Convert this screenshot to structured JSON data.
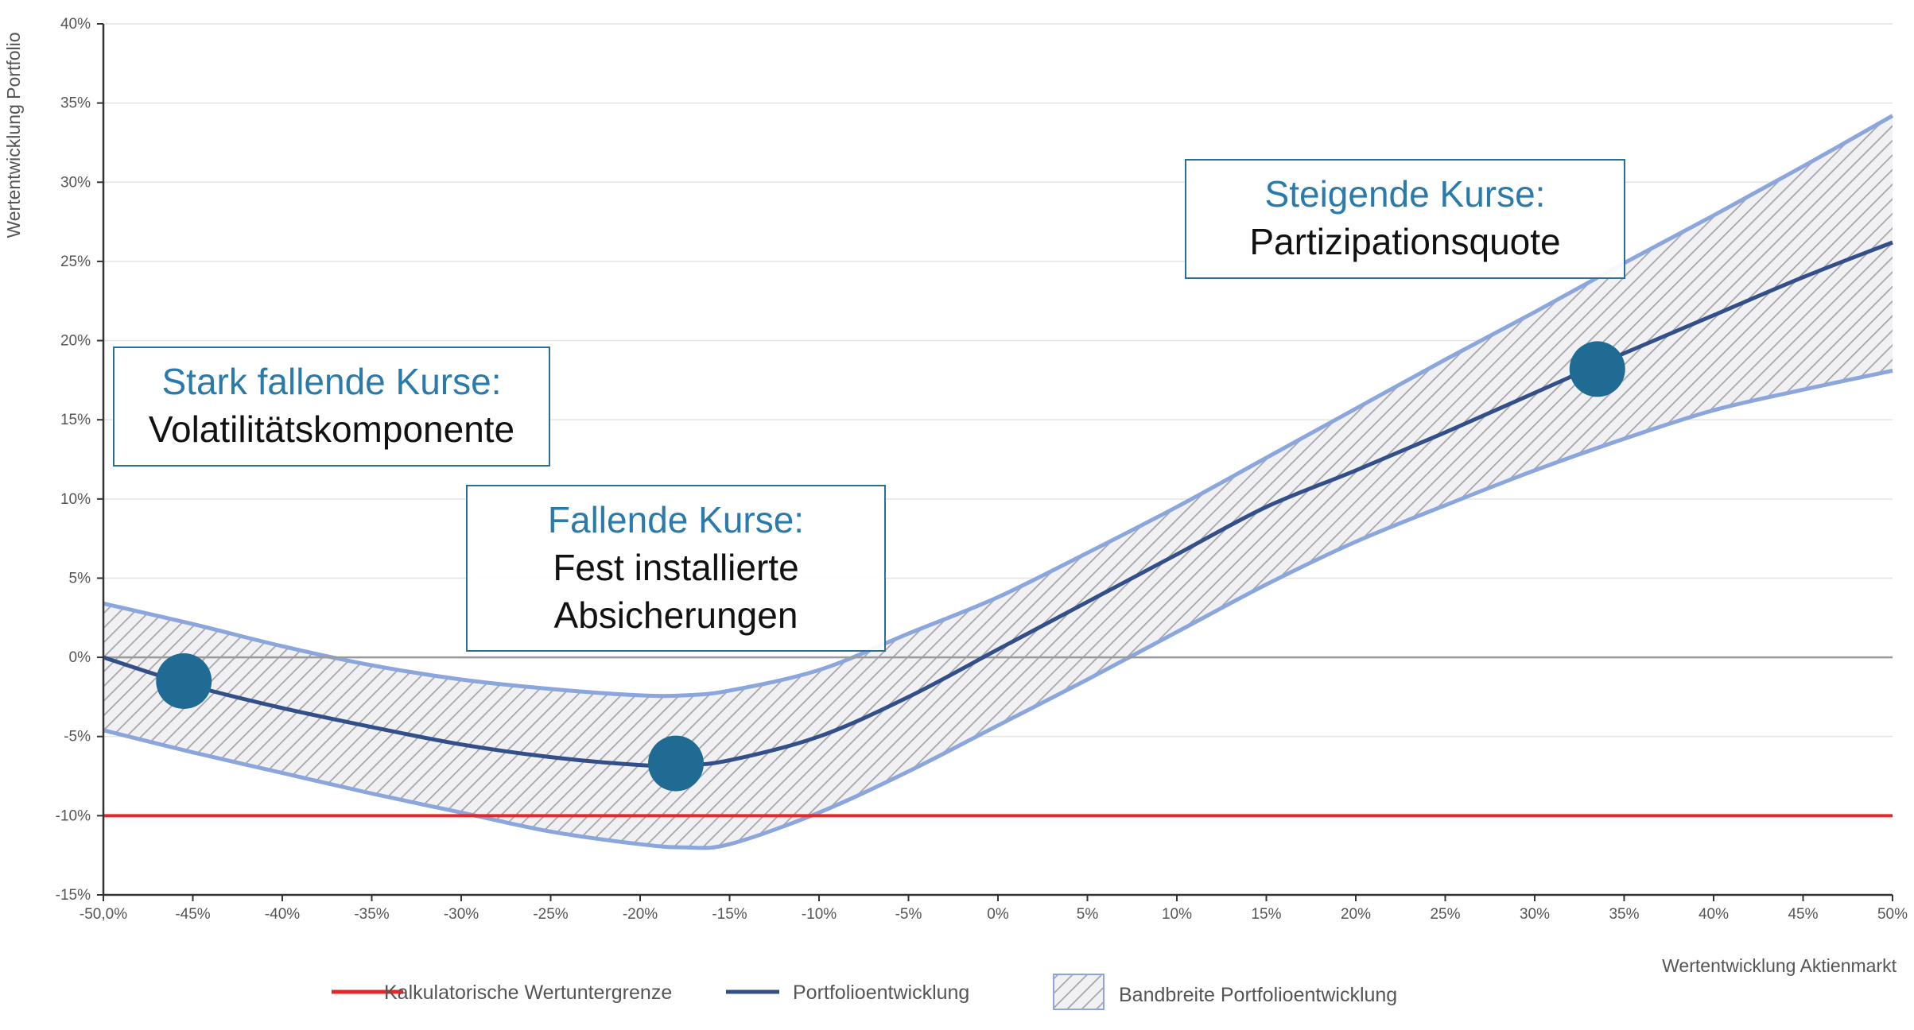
{
  "chart_data": {
    "type": "line",
    "xlabel": "Wertentwicklung Aktienmarkt",
    "ylabel": "Wertentwicklung Portfolio",
    "xlim": [
      -50,
      50
    ],
    "ylim": [
      -15,
      40
    ],
    "x_ticks": [
      -50,
      -45,
      -40,
      -35,
      -30,
      -25,
      -20,
      -15,
      -10,
      -5,
      0,
      5,
      10,
      15,
      20,
      25,
      30,
      35,
      40,
      45,
      50
    ],
    "x_tick_labels": [
      "-50,0%",
      "-45%",
      "-40%",
      "-35%",
      "-30%",
      "-25%",
      "-20%",
      "-15%",
      "-10%",
      "-5%",
      "0%",
      "5%",
      "10%",
      "15%",
      "20%",
      "25%",
      "30%",
      "35%",
      "40%",
      "45%",
      "50%"
    ],
    "y_ticks": [
      -15,
      -10,
      -5,
      0,
      5,
      10,
      15,
      20,
      25,
      30,
      35,
      40
    ],
    "y_tick_labels": [
      "-15%",
      "-10%",
      "-5%",
      "0%",
      "5%",
      "10%",
      "15%",
      "20%",
      "25%",
      "30%",
      "35%",
      "40%"
    ],
    "grid": "horizontal",
    "legend_position": "bottom",
    "series": [
      {
        "name": "Kalkulatorische Wertuntergrenze",
        "color": "#e8262a",
        "x": [
          -50,
          50
        ],
        "values": [
          -10,
          -10
        ]
      },
      {
        "name": "Portfolioentwicklung",
        "color": "#334f8a",
        "x": [
          -50,
          -45,
          -40,
          -35,
          -30,
          -25,
          -20,
          -17.5,
          -15,
          -10,
          -5,
          0,
          5,
          10,
          15,
          20,
          25,
          30,
          35,
          40,
          45,
          50
        ],
        "values": [
          0,
          -1.8,
          -3.2,
          -4.4,
          -5.5,
          -6.3,
          -6.8,
          -6.8,
          -6.5,
          -5,
          -2.5,
          0.5,
          3.5,
          6.5,
          9.5,
          11.8,
          14.2,
          16.7,
          19.2,
          21.6,
          24,
          26.2
        ]
      }
    ],
    "band": {
      "name": "Bandbreite Portfolioentwicklung",
      "color": "#8aa6dc",
      "x": [
        -50,
        -45,
        -40,
        -35,
        -30,
        -25,
        -20,
        -17.5,
        -15,
        -10,
        -5,
        0,
        5,
        10,
        15,
        20,
        25,
        30,
        35,
        40,
        45,
        50
      ],
      "upper": [
        3.4,
        2.1,
        0.7,
        -0.5,
        -1.4,
        -2,
        -2.4,
        -2.4,
        -2.1,
        -0.8,
        1.5,
        3.8,
        6.6,
        9.5,
        12.6,
        15.7,
        18.8,
        21.8,
        24.9,
        27.9,
        31,
        34.2
      ],
      "lower": [
        -4.6,
        -6,
        -7.3,
        -8.6,
        -9.8,
        -11,
        -11.8,
        -12,
        -11.8,
        -9.8,
        -7.2,
        -4.3,
        -1.4,
        1.6,
        4.6,
        7.3,
        9.6,
        11.8,
        13.8,
        15.6,
        16.9,
        18.1
      ]
    },
    "markers": [
      {
        "x": -45.5,
        "y": -1.5
      },
      {
        "x": -18,
        "y": -6.7
      },
      {
        "x": 33.5,
        "y": 18.2
      }
    ],
    "marker_color": "#1f6b94",
    "reference_line": {
      "y": 0,
      "color": "#9a9a9a"
    },
    "annotations": [
      {
        "head": "Stark fallende Kurse:",
        "body": [
          "Volatilitätskomponente"
        ]
      },
      {
        "head": "Fallende Kurse:",
        "body": [
          "Fest installierte",
          "Absicherungen"
        ]
      },
      {
        "head": "Steigende Kurse:",
        "body": [
          "Partizipationsquote"
        ]
      }
    ]
  }
}
